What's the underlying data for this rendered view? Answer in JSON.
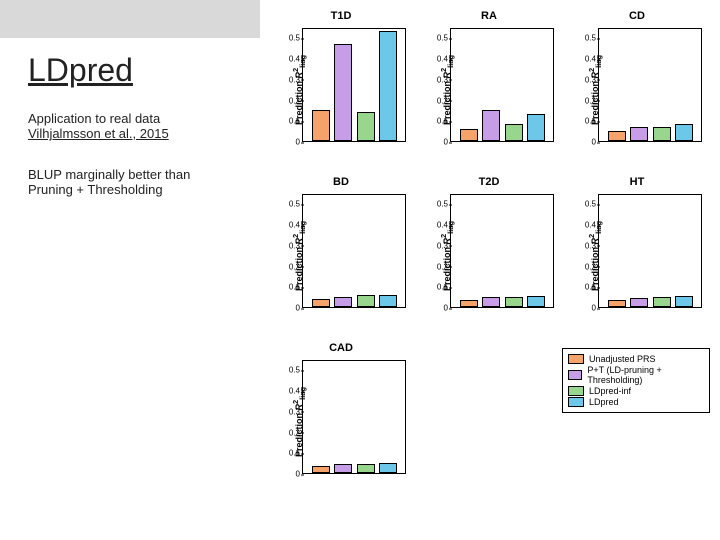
{
  "title": "LDpred",
  "line1": "Application to real data",
  "line2": "Vilhjalmsson et al., 2015",
  "line3": "BLUP marginally better than",
  "line4": "Pruning + Thresholding",
  "ylim": [
    0,
    0.55
  ],
  "yticks": [
    0,
    0.1,
    0.2,
    0.3,
    0.4,
    0.5
  ],
  "ytick_labels": [
    "0",
    "0.1",
    "0.2",
    "0.3",
    "0.4",
    "0.5"
  ],
  "ylabel_html": "Prediction <span class='r2'>R</span><sup>2</sup><sub>liag</sub>",
  "series_colors": [
    "#f5a26b",
    "#c79de8",
    "#97d68c",
    "#6dc7e8"
  ],
  "panels": [
    {
      "title": "T1D",
      "values": [
        0.15,
        0.47,
        0.14,
        0.53
      ]
    },
    {
      "title": "RA",
      "values": [
        0.06,
        0.15,
        0.08,
        0.13
      ]
    },
    {
      "title": "CD",
      "values": [
        0.05,
        0.07,
        0.07,
        0.08
      ]
    },
    {
      "title": "BD",
      "values": [
        0.04,
        0.05,
        0.06,
        0.06
      ]
    },
    {
      "title": "T2D",
      "values": [
        0.035,
        0.05,
        0.05,
        0.055
      ]
    },
    {
      "title": "HT",
      "values": [
        0.035,
        0.045,
        0.05,
        0.055
      ]
    },
    {
      "title": "CAD",
      "values": [
        0.035,
        0.045,
        0.045,
        0.05
      ]
    }
  ],
  "legend": [
    {
      "label": "Unadjusted PRS"
    },
    {
      "label": "P+T (LD-pruning + Thresholding)"
    },
    {
      "label": "LDpred-inf"
    },
    {
      "label": "LDpred"
    }
  ]
}
